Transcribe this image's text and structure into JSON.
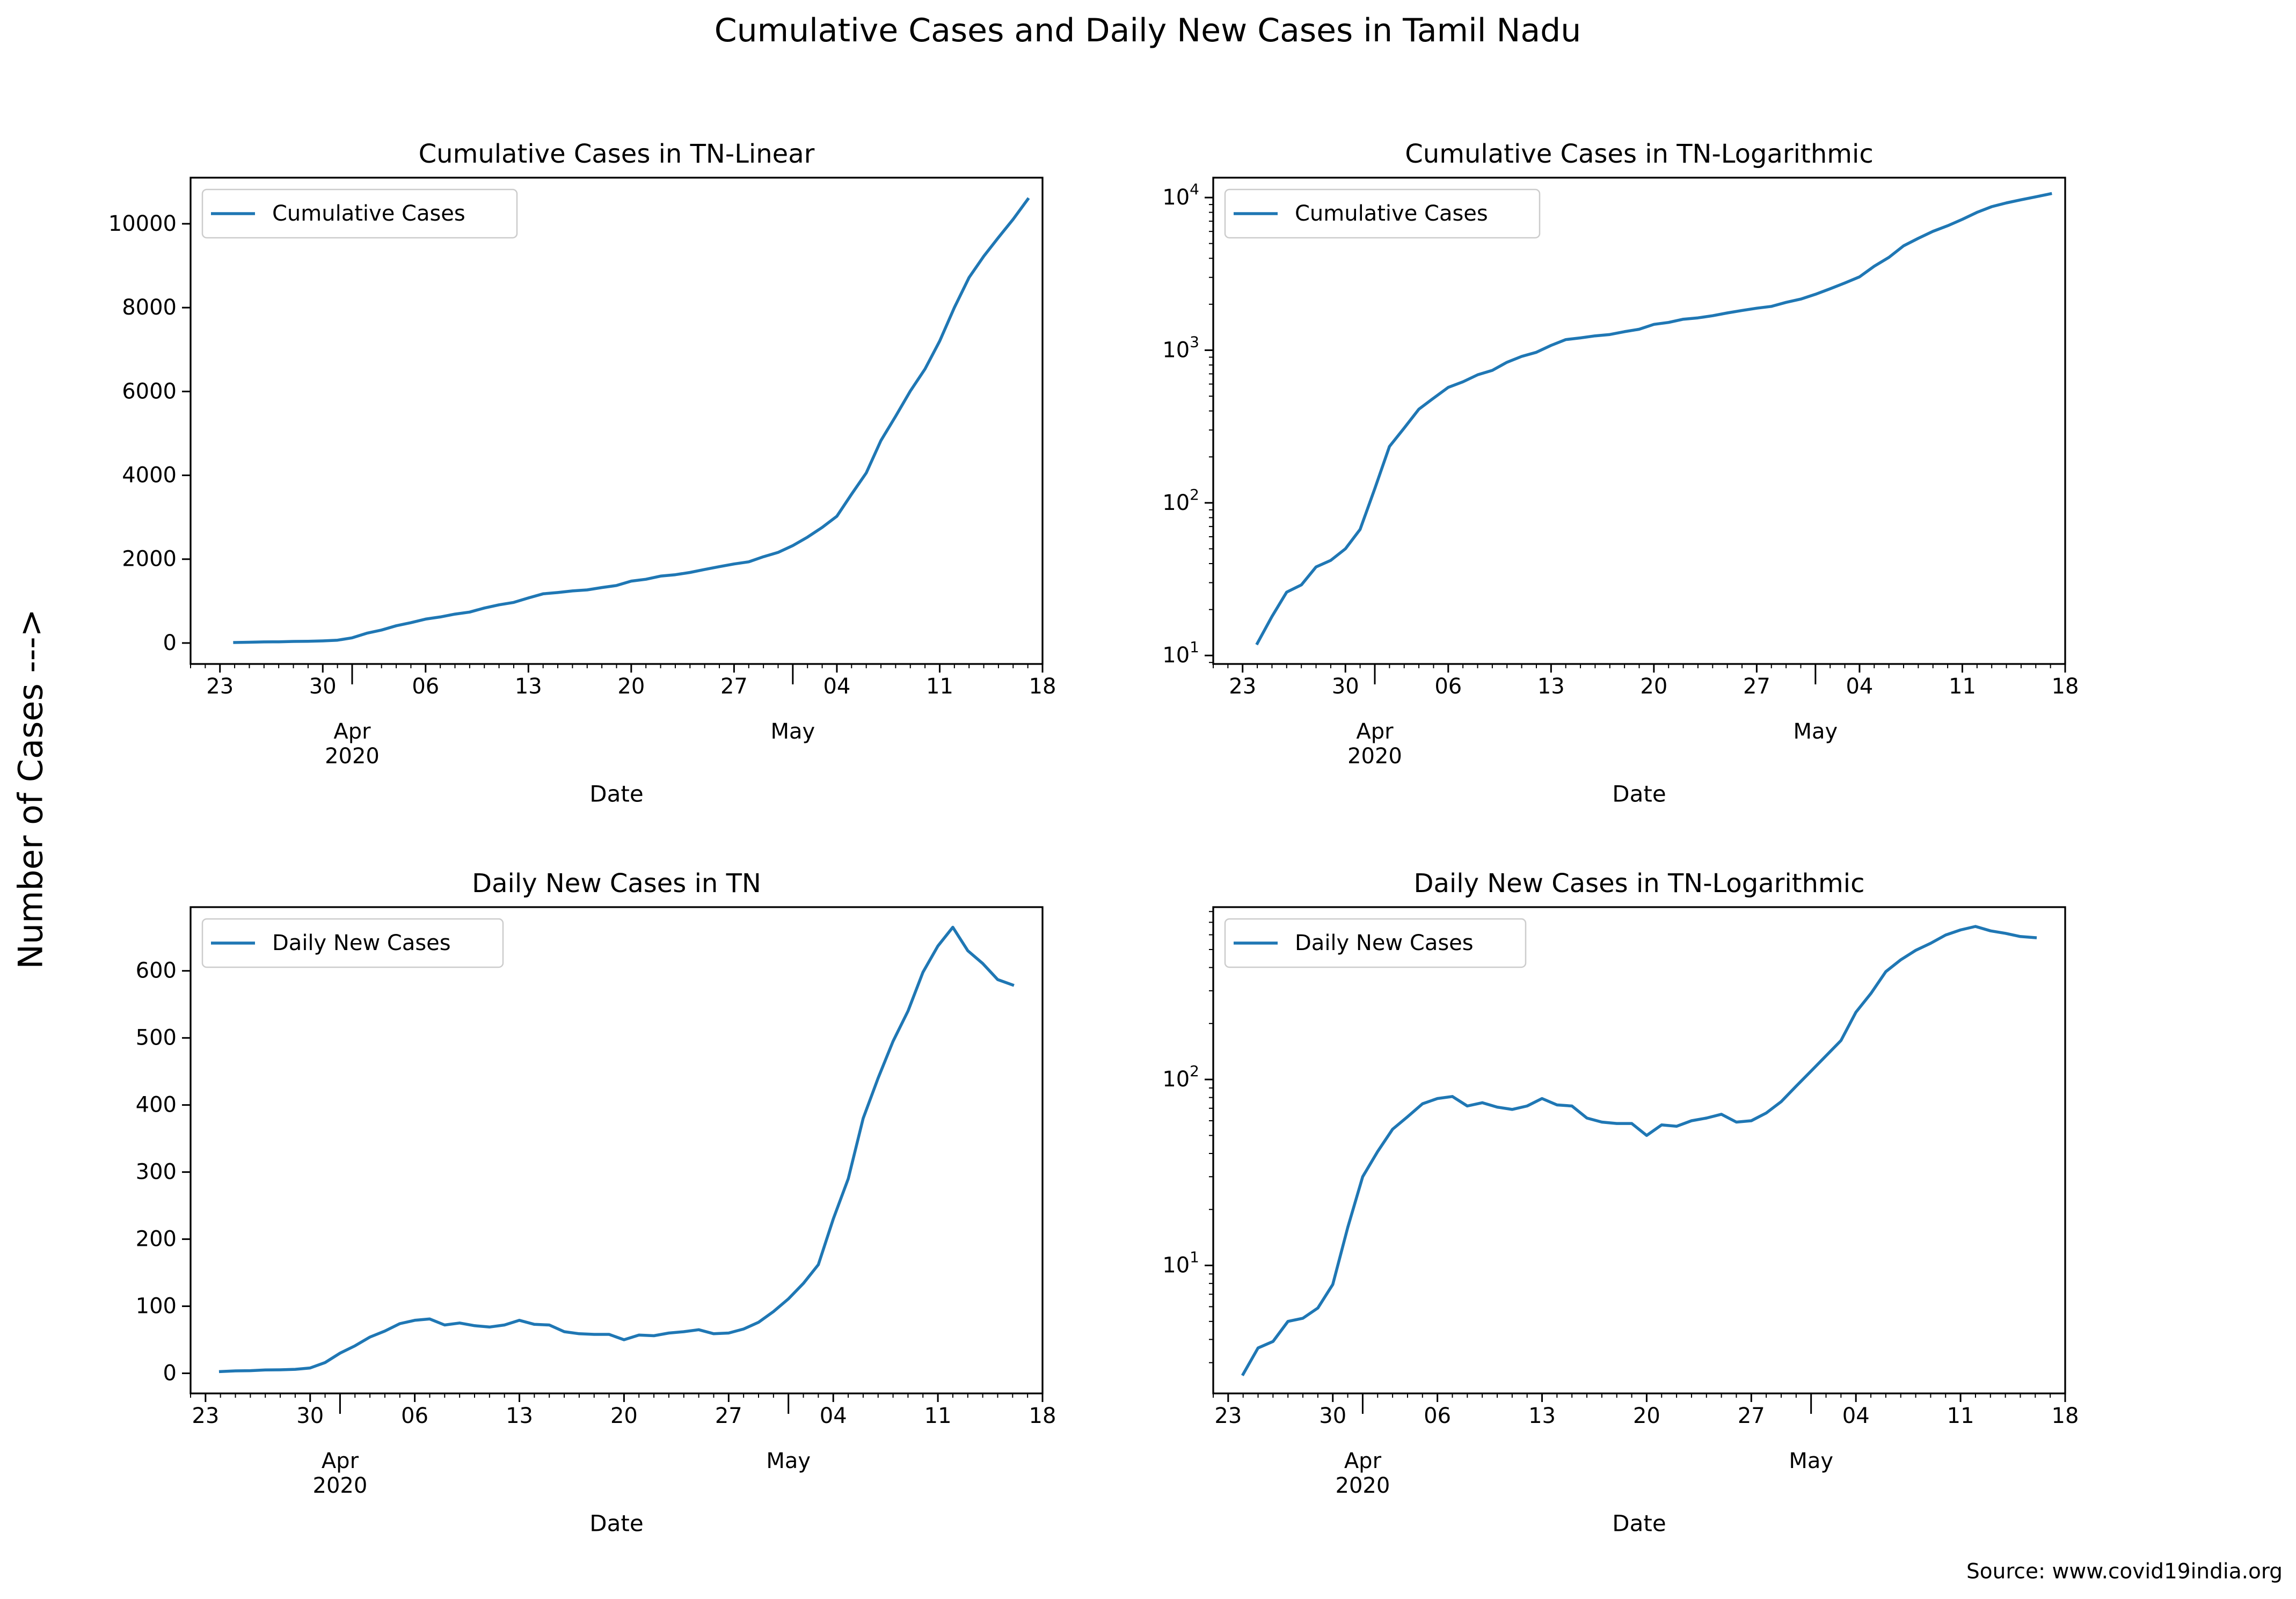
{
  "figure": {
    "suptitle": "Cumulative Cases and Daily New Cases in Tamil Nadu",
    "ylabel": "Number of Cases --->",
    "source": "Source: www.covid19india.org",
    "line_color": "#1f77b4"
  },
  "chart_data": [
    {
      "type": "line",
      "title": "Cumulative Cases in TN-Linear",
      "xlabel": "Date",
      "ylabel": "",
      "yscale": "linear",
      "legend": "upper left",
      "xlim": [
        "2020-03-21",
        "2020-05-18"
      ],
      "ylim": [
        -500,
        11100
      ],
      "x_ticks": [
        "23",
        "30",
        "06",
        "13",
        "20",
        "27",
        "04",
        "11",
        "18"
      ],
      "month_labels": [
        "Apr\n2020",
        "May"
      ],
      "y_ticks": [
        "0",
        "2000",
        "4000",
        "6000",
        "8000",
        "10000"
      ],
      "series": [
        {
          "name": "Cumulative Cases",
          "x_start": "2020-03-24",
          "y": [
            12,
            18,
            26,
            29,
            38,
            42,
            50,
            67,
            124,
            234,
            309,
            411,
            485,
            571,
            621,
            690,
            738,
            834,
            911,
            969,
            1075,
            1173,
            1204,
            1242,
            1267,
            1323,
            1372,
            1477,
            1520,
            1596,
            1629,
            1683,
            1755,
            1821,
            1885,
            1937,
            2058,
            2162,
            2323,
            2526,
            2757,
            3023,
            3550,
            4058,
            4829,
            5409,
            6009,
            6535,
            7204,
            8002,
            8718,
            9227,
            9674,
            10108,
            10585
          ]
        }
      ]
    },
    {
      "type": "line",
      "title": "Cumulative Cases in TN-Logarithmic",
      "xlabel": "Date",
      "ylabel": "",
      "yscale": "log",
      "legend": "upper left",
      "xlim": [
        "2020-03-21",
        "2020-05-18"
      ],
      "ylim": [
        8.8,
        13500
      ],
      "x_ticks": [
        "23",
        "30",
        "06",
        "13",
        "20",
        "27",
        "04",
        "11",
        "18"
      ],
      "month_labels": [
        "Apr\n2020",
        "May"
      ],
      "y_ticks": [
        "10^1",
        "10^2",
        "10^3",
        "10^4"
      ],
      "series": [
        {
          "name": "Cumulative Cases",
          "x_start": "2020-03-24",
          "y": [
            12,
            18,
            26,
            29,
            38,
            42,
            50,
            67,
            124,
            234,
            309,
            411,
            485,
            571,
            621,
            690,
            738,
            834,
            911,
            969,
            1075,
            1173,
            1204,
            1242,
            1267,
            1323,
            1372,
            1477,
            1520,
            1596,
            1629,
            1683,
            1755,
            1821,
            1885,
            1937,
            2058,
            2162,
            2323,
            2526,
            2757,
            3023,
            3550,
            4058,
            4829,
            5409,
            6009,
            6535,
            7204,
            8002,
            8718,
            9227,
            9674,
            10108,
            10585
          ]
        }
      ]
    },
    {
      "type": "line",
      "title": "Daily New Cases in TN",
      "xlabel": "Date",
      "ylabel": "",
      "yscale": "linear",
      "legend": "upper left",
      "xlim": [
        "2020-03-22",
        "2020-05-18"
      ],
      "ylim": [
        -30,
        695
      ],
      "x_ticks": [
        "23",
        "30",
        "06",
        "13",
        "20",
        "27",
        "04",
        "11",
        "18"
      ],
      "month_labels": [
        "Apr\n2020",
        "May"
      ],
      "y_ticks": [
        "0",
        "100",
        "200",
        "300",
        "400",
        "500",
        "600"
      ],
      "series": [
        {
          "name": "Daily New Cases",
          "x_start": "2020-03-24",
          "y": [
            2.6,
            3.6,
            3.9,
            5,
            5.2,
            5.9,
            7.9,
            16,
            30,
            41,
            54,
            63,
            74,
            79,
            81,
            72,
            75,
            71,
            69,
            72,
            79,
            73,
            72,
            62,
            59,
            58,
            58,
            50,
            57,
            56,
            60,
            62,
            65,
            59,
            60,
            66,
            76,
            92,
            111,
            134,
            162,
            230,
            290,
            380,
            440,
            495,
            540,
            598,
            637,
            665,
            630,
            611,
            587,
            579
          ]
        }
      ]
    },
    {
      "type": "line",
      "title": "Daily New Cases in TN-Logarithmic",
      "xlabel": "Date",
      "ylabel": "",
      "yscale": "log",
      "legend": "upper left",
      "xlim": [
        "2020-03-22",
        "2020-05-18"
      ],
      "ylim": [
        2.05,
        845
      ],
      "x_ticks": [
        "23",
        "30",
        "06",
        "13",
        "20",
        "27",
        "04",
        "11",
        "18"
      ],
      "month_labels": [
        "Apr\n2020",
        "May"
      ],
      "y_ticks": [
        "10^1",
        "10^2"
      ],
      "series": [
        {
          "name": "Daily New Cases",
          "x_start": "2020-03-24",
          "y": [
            2.6,
            3.6,
            3.9,
            5,
            5.2,
            5.9,
            7.9,
            16,
            30,
            41,
            54,
            63,
            74,
            79,
            81,
            72,
            75,
            71,
            69,
            72,
            79,
            73,
            72,
            62,
            59,
            58,
            58,
            50,
            57,
            56,
            60,
            62,
            65,
            59,
            60,
            66,
            76,
            92,
            111,
            134,
            162,
            230,
            290,
            380,
            440,
            495,
            540,
            598,
            637,
            665,
            630,
            611,
            587,
            579
          ]
        }
      ]
    }
  ]
}
